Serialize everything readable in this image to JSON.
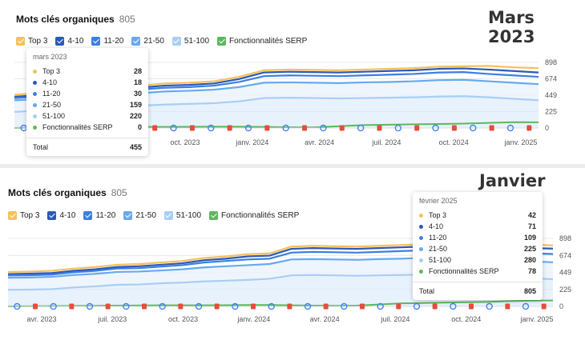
{
  "colors": {
    "top3": "#f5c15a",
    "r4_10": "#2a59b8",
    "r11_20": "#3b7fe0",
    "r21_50": "#68a9ee",
    "r51_100": "#a8cef5",
    "serp": "#5cb85c",
    "marker_red": "#e74c3c",
    "marker_google": "#4285f4"
  },
  "panels": [
    {
      "title": "Mots clés organiques",
      "count": "805",
      "big_date": "Mars 2023",
      "legend": [
        "Top 3",
        "4-10",
        "11-20",
        "21-50",
        "51-100",
        "Fonctionnalités SERP"
      ],
      "tooltip": {
        "date": "mars 2023",
        "rows": [
          {
            "label": "Top 3",
            "value": "28"
          },
          {
            "label": "4-10",
            "value": "18"
          },
          {
            "label": "11-20",
            "value": "30"
          },
          {
            "label": "21-50",
            "value": "159"
          },
          {
            "label": "51-100",
            "value": "220"
          },
          {
            "label": "Fonctionnalités SERP",
            "value": "0"
          }
        ],
        "total_label": "Total",
        "total_value": "455"
      }
    },
    {
      "title": "Mots clés organiques",
      "count": "805",
      "big_date": "Janvier 2025",
      "legend": [
        "Top 3",
        "4-10",
        "11-20",
        "21-50",
        "51-100",
        "Fonctionnalités SERP"
      ],
      "tooltip": {
        "date": "février 2025",
        "rows": [
          {
            "label": "Top 3",
            "value": "42"
          },
          {
            "label": "4-10",
            "value": "71"
          },
          {
            "label": "11-20",
            "value": "109"
          },
          {
            "label": "21-50",
            "value": "225"
          },
          {
            "label": "51-100",
            "value": "280"
          },
          {
            "label": "Fonctionnalités SERP",
            "value": "78"
          }
        ],
        "total_label": "Total",
        "total_value": "805"
      }
    }
  ],
  "chart_data": [
    {
      "type": "area",
      "x_labels": [
        "oct. 2023",
        "janv. 2024",
        "avr. 2024",
        "juil. 2024",
        "oct. 2024",
        "janv. 2025"
      ],
      "y_ticks": [
        "898",
        "674",
        "449",
        "225",
        "0"
      ],
      "ylim": [
        0,
        898
      ],
      "series": [
        {
          "name": "Top 3",
          "values": [
            455,
            480,
            520,
            545,
            560,
            580,
            610,
            620,
            640,
            700,
            790,
            800,
            795,
            790,
            800,
            810,
            820,
            840,
            845,
            850,
            830,
            820
          ]
        },
        {
          "name": "4-10",
          "values": [
            427,
            450,
            490,
            515,
            530,
            550,
            580,
            590,
            610,
            670,
            760,
            770,
            765,
            760,
            770,
            780,
            790,
            810,
            815,
            800,
            780,
            760
          ]
        },
        {
          "name": "11-20",
          "values": [
            409,
            430,
            470,
            495,
            505,
            525,
            550,
            560,
            580,
            630,
            710,
            720,
            715,
            710,
            720,
            730,
            740,
            760,
            765,
            740,
            720,
            700
          ]
        },
        {
          "name": "21-50",
          "values": [
            379,
            395,
            430,
            455,
            460,
            475,
            500,
            510,
            525,
            560,
            620,
            625,
            620,
            615,
            625,
            630,
            640,
            655,
            660,
            640,
            620,
            600
          ]
        },
        {
          "name": "51-100",
          "values": [
            220,
            240,
            270,
            290,
            295,
            305,
            320,
            330,
            340,
            365,
            410,
            415,
            410,
            405,
            410,
            415,
            420,
            430,
            435,
            420,
            400,
            380
          ]
        },
        {
          "name": "Fonctionnalités SERP",
          "values": [
            0,
            5,
            10,
            12,
            14,
            15,
            15,
            16,
            18,
            18,
            15,
            10,
            8,
            25,
            40,
            45,
            50,
            55,
            60,
            70,
            80,
            78
          ]
        }
      ]
    },
    {
      "type": "area",
      "x_labels": [
        "avr. 2023",
        "juil. 2023",
        "oct. 2023",
        "janv. 2024",
        "avr. 2024",
        "juil. 2024",
        "oct. 2024",
        "janv. 2025"
      ],
      "y_ticks": [
        "898",
        "674",
        "449",
        "225",
        "0"
      ],
      "ylim": [
        0,
        898
      ],
      "series": [
        {
          "name": "Top 3",
          "values": [
            455,
            460,
            470,
            500,
            520,
            550,
            560,
            580,
            600,
            640,
            660,
            690,
            700,
            790,
            800,
            795,
            790,
            800,
            810,
            820,
            840,
            845,
            850,
            830,
            820,
            805
          ]
        },
        {
          "name": "4-10",
          "values": [
            427,
            432,
            440,
            470,
            490,
            520,
            530,
            550,
            570,
            610,
            630,
            660,
            670,
            760,
            770,
            765,
            760,
            770,
            780,
            790,
            810,
            815,
            800,
            780,
            770,
            763
          ]
        },
        {
          "name": "11-20",
          "values": [
            409,
            412,
            420,
            450,
            470,
            500,
            505,
            525,
            545,
            580,
            600,
            620,
            630,
            710,
            720,
            715,
            710,
            720,
            730,
            740,
            760,
            765,
            740,
            720,
            700,
            692
          ]
        },
        {
          "name": "21-50",
          "values": [
            379,
            382,
            390,
            415,
            430,
            455,
            460,
            475,
            490,
            515,
            530,
            545,
            560,
            620,
            625,
            620,
            615,
            625,
            630,
            640,
            655,
            660,
            640,
            620,
            595,
            583
          ]
        },
        {
          "name": "51-100",
          "values": [
            220,
            222,
            228,
            250,
            265,
            285,
            290,
            305,
            315,
            330,
            340,
            350,
            365,
            410,
            415,
            410,
            405,
            410,
            415,
            420,
            430,
            435,
            420,
            400,
            375,
            358
          ]
        },
        {
          "name": "Fonctionnalités SERP",
          "values": [
            0,
            2,
            4,
            6,
            8,
            10,
            12,
            14,
            15,
            15,
            16,
            18,
            18,
            15,
            10,
            8,
            10,
            25,
            40,
            45,
            50,
            55,
            60,
            70,
            76,
            78
          ]
        }
      ]
    }
  ]
}
